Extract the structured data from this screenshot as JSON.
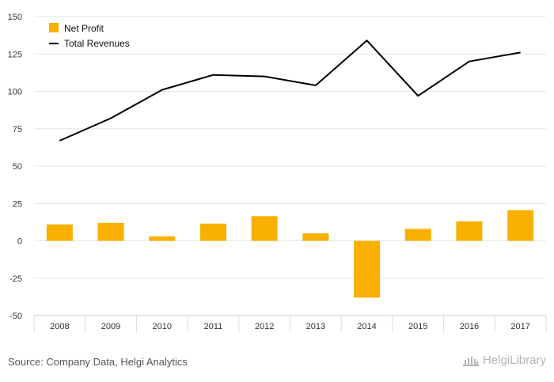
{
  "chart_data": {
    "type": "bar",
    "categories": [
      "2008",
      "2009",
      "2010",
      "2011",
      "2012",
      "2013",
      "2014",
      "2015",
      "2016",
      "2017"
    ],
    "series": [
      {
        "name": "Net Profit",
        "type": "bar",
        "color": "#F9B000",
        "values": [
          11,
          12,
          3,
          11.5,
          16.5,
          5,
          -38,
          8,
          13,
          20.5
        ]
      },
      {
        "name": "Total Revenues",
        "type": "line",
        "color": "#000000",
        "values": [
          67,
          82,
          101,
          111,
          110,
          104,
          134,
          97,
          120,
          126
        ]
      }
    ],
    "ylim": [
      -50,
      150
    ],
    "yticks": [
      150,
      125,
      100,
      75,
      50,
      25,
      0,
      -25,
      -50
    ],
    "ytick_labels": [
      "150",
      "125",
      "100",
      "75",
      "50",
      "25",
      "0",
      "-25",
      "-50"
    ],
    "grid": true,
    "legend_position": "top-left",
    "title": "",
    "xlabel": "",
    "ylabel": ""
  },
  "footer": {
    "source": "Source: Company Data, Helgi Analytics",
    "logo_text": "HelgiLibrary"
  },
  "colors": {
    "grid": "#e6e6e6",
    "axis_text": "#333333",
    "plot_bg": "#ffffff"
  }
}
